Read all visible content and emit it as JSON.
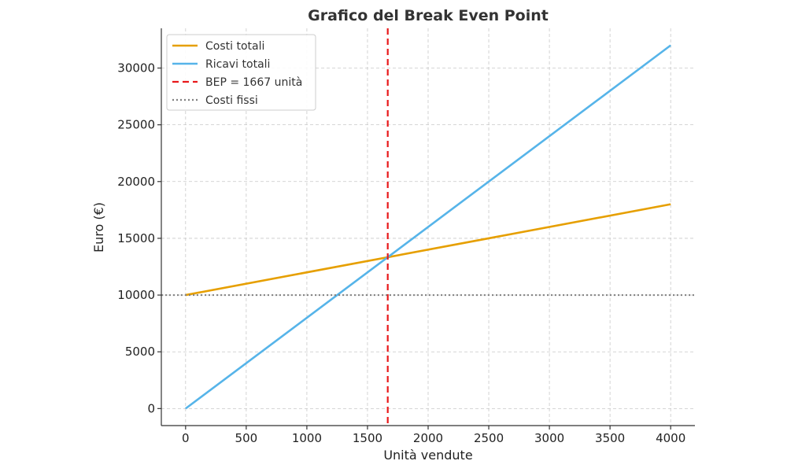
{
  "chart_data": {
    "type": "line",
    "title": "Grafico del Break Even Point",
    "xlabel": "Unità vendute",
    "ylabel": "Euro (€)",
    "xlim": [
      -200,
      4200
    ],
    "ylim": [
      -1500,
      33500
    ],
    "xticks": [
      0,
      500,
      1000,
      1500,
      2000,
      2500,
      3000,
      3500,
      4000
    ],
    "yticks": [
      0,
      5000,
      10000,
      15000,
      20000,
      25000,
      30000
    ],
    "grid": true,
    "legend_position": "top-left",
    "series": [
      {
        "name": "Costi totali",
        "color": "#E69F00",
        "style": "solid",
        "x": [
          0,
          4000
        ],
        "y": [
          10000,
          18000
        ]
      },
      {
        "name": "Ricavi totali",
        "color": "#56B4E9",
        "style": "solid",
        "x": [
          0,
          4000
        ],
        "y": [
          0,
          32000
        ]
      }
    ],
    "vertical_lines": [
      {
        "name": "BEP = 1667 unità",
        "color": "#E8191B",
        "style": "dashed",
        "x": 1667
      }
    ],
    "horizontal_lines": [
      {
        "name": "Costi fissi",
        "color": "#808080",
        "style": "dotted",
        "y": 10000
      }
    ]
  }
}
